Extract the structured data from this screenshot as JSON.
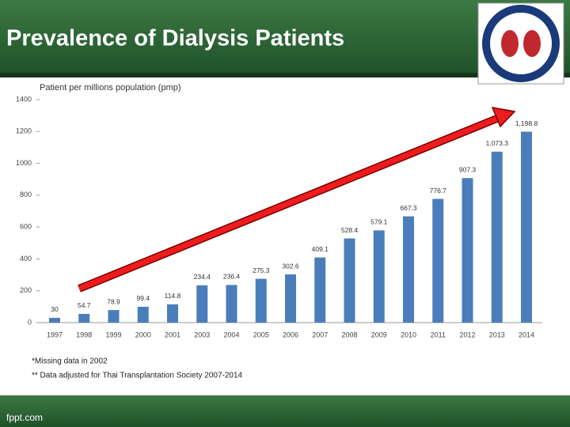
{
  "title": "Prevalence of Dialysis Patients",
  "footer": "fppt.com",
  "chart_data": {
    "type": "bar",
    "y_label": "Patient per millions population (pmp)",
    "categories": [
      "1997",
      "1998",
      "1999",
      "2000",
      "2001",
      "2003",
      "2004",
      "2005",
      "2006",
      "2007",
      "2008",
      "2009",
      "2010",
      "2011",
      "2012",
      "2013",
      "2014"
    ],
    "values": [
      30,
      54.7,
      78.9,
      99.4,
      114.8,
      234.4,
      236.4,
      275.3,
      302.6,
      409.1,
      528.4,
      579.1,
      667.3,
      776.7,
      907.3,
      1073.3,
      1198.8
    ],
    "value_labels": [
      "30",
      "54.7",
      "78.9",
      "99.4",
      "114.8",
      "234.4",
      "236.4",
      "275.3",
      "302.6",
      "409.1",
      "528.4",
      "579.1",
      "667.3",
      "776.7",
      "907.3",
      "1,073.3",
      "1,198.8"
    ],
    "color": "#4a7ebb",
    "ylim": [
      0,
      1400
    ],
    "yticks": [
      0,
      200,
      400,
      600,
      800,
      1000,
      1200,
      1400
    ],
    "grid": false,
    "notes": [
      "*Missing data in 2002",
      "** Data adjusted for Thai Transplantation Society 2007-2014"
    ]
  }
}
